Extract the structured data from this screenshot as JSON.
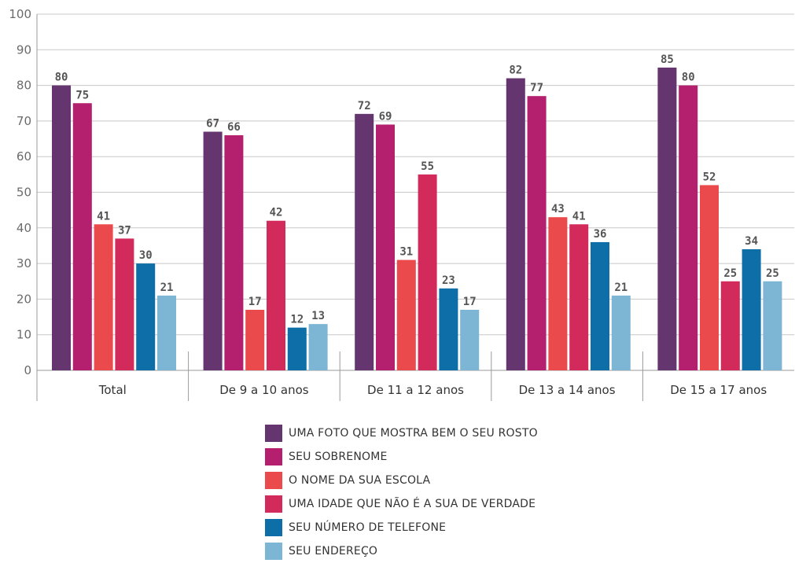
{
  "chart_data": {
    "type": "bar",
    "ylim": [
      0,
      100
    ],
    "yticks": [
      0,
      10,
      20,
      30,
      40,
      50,
      60,
      70,
      80,
      90,
      100
    ],
    "grid": true,
    "legend_position": "bottom",
    "categories": [
      "Total",
      "De 9 a 10 anos",
      "De 11 a 12 anos",
      "De 13 a 14 anos",
      "De 15 a 17 anos"
    ],
    "series": [
      {
        "name": "UMA FOTO QUE MOSTRA BEM O SEU ROSTO",
        "color": "#65356f",
        "values": [
          80,
          67,
          72,
          82,
          85
        ]
      },
      {
        "name": "SEU SOBRENOME",
        "color": "#b41f6e",
        "values": [
          75,
          66,
          69,
          77,
          80
        ]
      },
      {
        "name": "O NOME DA SUA ESCOLA",
        "color": "#ea4a4c",
        "values": [
          41,
          17,
          31,
          43,
          52
        ]
      },
      {
        "name": "UMA IDADE QUE NÃO É A SUA DE VERDADE",
        "color": "#d22a5a",
        "values": [
          37,
          42,
          55,
          41,
          25
        ]
      },
      {
        "name": "SEU NÚMERO DE TELEFONE",
        "color": "#0e6fa8",
        "values": [
          30,
          12,
          23,
          36,
          34
        ]
      },
      {
        "name": "SEU ENDEREÇO",
        "color": "#7db5d4",
        "values": [
          21,
          13,
          17,
          21,
          25
        ]
      }
    ]
  }
}
